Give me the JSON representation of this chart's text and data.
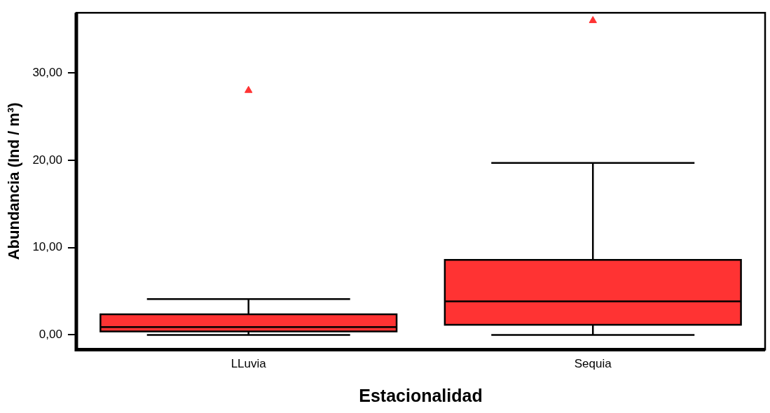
{
  "chart_data": {
    "type": "box",
    "xlabel": "Estacionalidad",
    "ylabel": "Abundancia (Ind / m³)",
    "categories": [
      "LLuvia",
      "Sequia"
    ],
    "color": "#ff3333",
    "marker": "triangle",
    "boxes": [
      {
        "low": 0,
        "q1": 0.4,
        "median": 0.9,
        "q3": 2.35,
        "high": 4.1,
        "outliers": [
          28.0
        ]
      },
      {
        "low": 0,
        "q1": 1.15,
        "median": 3.85,
        "q3": 8.6,
        "high": 19.7,
        "outliers": [
          36.0
        ]
      }
    ],
    "ylim": [
      -1.7,
      36.9
    ],
    "yticks": [
      {
        "value": 0,
        "label": "0,00"
      },
      {
        "value": 10,
        "label": "10,00"
      },
      {
        "value": 20,
        "label": "20,00"
      },
      {
        "value": 30,
        "label": "30,00"
      }
    ],
    "grid": false,
    "legend": false
  }
}
